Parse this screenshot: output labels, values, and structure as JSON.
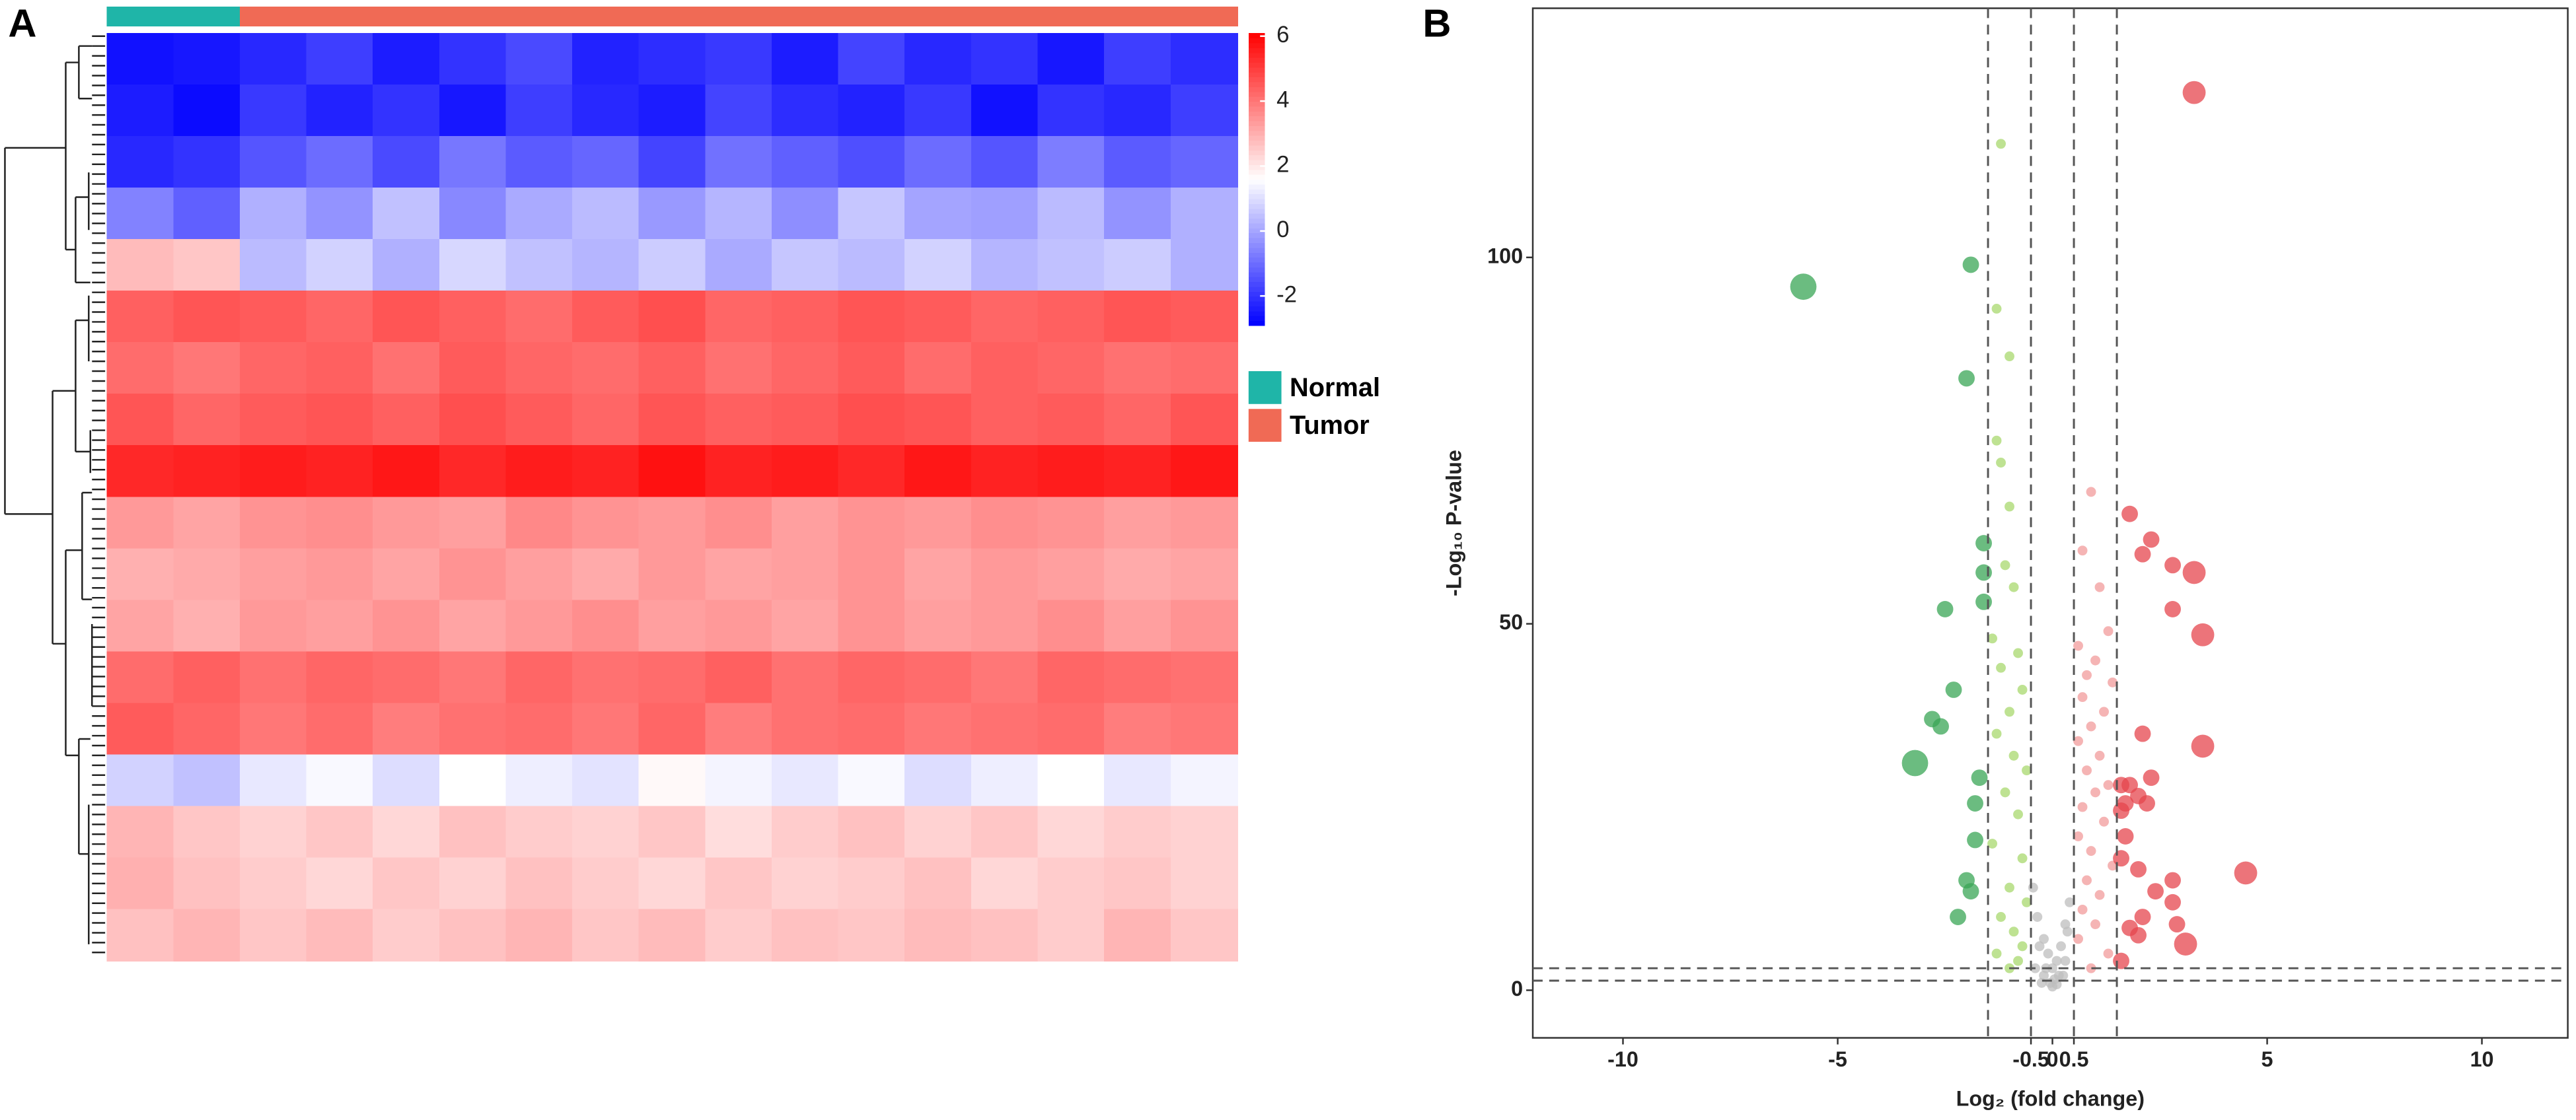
{
  "chart_data": [
    {
      "type": "heatmap",
      "panel_label": "A",
      "clim": [
        -2.9,
        6.1
      ],
      "colors": [
        "#0000ff",
        "#ffffff",
        "#ff0000"
      ],
      "cticks": [
        -2,
        0,
        2,
        4,
        6
      ],
      "groups": [
        {
          "name": "Normal",
          "color": "#1fb5a8"
        },
        {
          "name": "Tumor",
          "color": "#f06a55"
        }
      ],
      "column_groups": [
        0,
        0,
        1,
        1,
        1,
        1,
        1,
        1,
        1,
        1,
        1,
        1,
        1,
        1,
        1,
        1,
        1
      ],
      "values": [
        [
          -2.6,
          -2.5,
          -2.2,
          -1.8,
          -2.4,
          -2.0,
          -1.6,
          -2.3,
          -2.1,
          -1.9,
          -2.4,
          -1.7,
          -2.2,
          -2.0,
          -2.5,
          -1.8,
          -2.1
        ],
        [
          -2.4,
          -2.7,
          -1.9,
          -2.3,
          -2.0,
          -2.5,
          -1.8,
          -2.2,
          -2.4,
          -1.7,
          -2.1,
          -2.3,
          -1.9,
          -2.6,
          -2.0,
          -2.2,
          -1.8
        ],
        [
          -2.2,
          -2.0,
          -1.4,
          -1.0,
          -1.6,
          -0.8,
          -1.3,
          -1.1,
          -1.7,
          -0.9,
          -1.2,
          -1.5,
          -1.0,
          -1.4,
          -0.7,
          -1.3,
          -1.1
        ],
        [
          -0.6,
          -1.2,
          0.2,
          -0.3,
          0.5,
          -0.5,
          0.1,
          0.4,
          -0.2,
          0.3,
          -0.4,
          0.6,
          0.0,
          -0.1,
          0.4,
          -0.3,
          0.2
        ],
        [
          2.8,
          2.6,
          0.4,
          0.8,
          0.2,
          0.9,
          0.5,
          0.3,
          0.7,
          0.1,
          0.6,
          0.4,
          0.8,
          0.3,
          0.5,
          0.7,
          0.2
        ],
        [
          4.4,
          4.6,
          4.5,
          4.3,
          4.6,
          4.4,
          4.2,
          4.5,
          4.7,
          4.3,
          4.4,
          4.6,
          4.5,
          4.3,
          4.4,
          4.6,
          4.5
        ],
        [
          4.2,
          4.0,
          4.3,
          4.4,
          4.1,
          4.5,
          4.3,
          4.2,
          4.4,
          4.1,
          4.3,
          4.5,
          4.2,
          4.4,
          4.3,
          4.1,
          4.2
        ],
        [
          4.6,
          4.3,
          4.5,
          4.6,
          4.4,
          4.7,
          4.5,
          4.3,
          4.6,
          4.4,
          4.5,
          4.7,
          4.6,
          4.4,
          4.5,
          4.3,
          4.6
        ],
        [
          5.4,
          5.5,
          5.6,
          5.5,
          5.7,
          5.4,
          5.6,
          5.5,
          5.8,
          5.5,
          5.6,
          5.4,
          5.7,
          5.5,
          5.6,
          5.5,
          5.7
        ],
        [
          3.4,
          3.2,
          3.5,
          3.6,
          3.4,
          3.3,
          3.7,
          3.5,
          3.4,
          3.6,
          3.3,
          3.5,
          3.4,
          3.6,
          3.5,
          3.3,
          3.4
        ],
        [
          3.0,
          3.1,
          3.3,
          3.4,
          3.2,
          3.5,
          3.3,
          3.1,
          3.4,
          3.2,
          3.3,
          3.5,
          3.2,
          3.4,
          3.3,
          3.1,
          3.2
        ],
        [
          3.2,
          3.0,
          3.4,
          3.3,
          3.5,
          3.2,
          3.4,
          3.6,
          3.3,
          3.4,
          3.2,
          3.5,
          3.3,
          3.4,
          3.6,
          3.3,
          3.5
        ],
        [
          4.2,
          4.4,
          4.1,
          4.3,
          4.2,
          4.0,
          4.3,
          4.1,
          4.2,
          4.4,
          4.1,
          4.3,
          4.2,
          4.0,
          4.3,
          4.2,
          4.1
        ],
        [
          4.5,
          4.3,
          4.0,
          4.2,
          3.9,
          4.1,
          4.2,
          4.0,
          4.3,
          3.9,
          4.1,
          4.2,
          4.0,
          4.1,
          4.2,
          3.9,
          4.0
        ],
        [
          0.8,
          0.5,
          1.2,
          1.5,
          1.0,
          1.6,
          1.3,
          1.1,
          1.7,
          1.4,
          1.2,
          1.5,
          1.0,
          1.3,
          1.6,
          1.2,
          1.4
        ],
        [
          2.9,
          2.6,
          2.4,
          2.6,
          2.3,
          2.7,
          2.5,
          2.4,
          2.6,
          2.2,
          2.5,
          2.7,
          2.4,
          2.6,
          2.3,
          2.5,
          2.4
        ],
        [
          3.0,
          2.7,
          2.5,
          2.3,
          2.6,
          2.4,
          2.7,
          2.5,
          2.3,
          2.6,
          2.4,
          2.5,
          2.7,
          2.3,
          2.5,
          2.6,
          2.4
        ],
        [
          2.7,
          2.9,
          2.6,
          2.8,
          2.5,
          2.7,
          2.9,
          2.6,
          2.8,
          2.5,
          2.7,
          2.6,
          2.8,
          2.7,
          2.5,
          2.9,
          2.6
        ]
      ]
    },
    {
      "type": "scatter",
      "panel_label": "B",
      "xlabel": "Log₂ (fold change)",
      "ylabel": "-Log₁₀ P-value",
      "xlim": [
        -12.1,
        12
      ],
      "ylim": [
        -6.5,
        134
      ],
      "xticks": [
        -10,
        -5,
        -0.5,
        0,
        0.5,
        5,
        10
      ],
      "yticks": [
        0,
        50,
        100
      ],
      "vlines": [
        -1.5,
        -0.5,
        0.5,
        1.5
      ],
      "hlines": [
        1.3,
        3
      ],
      "series": [
        {
          "color": "#3aa655",
          "x": [
            -5.8,
            -1.9,
            -2.0,
            -1.6,
            -1.6,
            -1.6,
            -2.5,
            -2.3,
            -2.8,
            -2.6,
            -3.2,
            -1.7,
            -1.8,
            -1.8,
            -2.0,
            -1.9,
            -2.2
          ],
          "values": [
            96,
            99,
            83.5,
            61,
            57,
            53,
            52,
            41,
            37,
            36,
            31,
            29,
            25.5,
            20.5,
            15,
            13.5,
            10
          ],
          "sizes": [
            8,
            5,
            5,
            5,
            5,
            5,
            5,
            5,
            5,
            5,
            8,
            5,
            5,
            5,
            5,
            5,
            5
          ]
        },
        {
          "color": "#a8d86e",
          "size": 3,
          "x": [
            -1.2,
            -1.3,
            -1.0,
            -1.3,
            -1.2,
            -1.0,
            -1.1,
            -0.9,
            -1.4,
            -0.8,
            -1.2,
            -0.7,
            -1.0,
            -1.3,
            -0.9,
            -0.6,
            -1.1,
            -0.8,
            -1.4,
            -0.7,
            -1.0,
            -0.6,
            -1.2,
            -0.9,
            -0.7,
            -1.3,
            -0.8,
            -1.0
          ],
          "values": [
            115.5,
            93,
            86.5,
            75,
            72,
            66,
            58,
            55,
            48,
            46,
            44,
            41,
            38,
            35,
            32,
            30,
            27,
            24,
            20,
            18,
            14,
            12,
            10,
            8,
            6,
            5,
            4,
            3
          ]
        },
        {
          "color": "#bdbdbd",
          "size": 3,
          "x": [
            -0.45,
            -0.35,
            -0.2,
            -0.1,
            0.0,
            0.1,
            0.2,
            0.3,
            0.4,
            -0.3,
            -0.15,
            0.05,
            0.15,
            0.35,
            -0.4,
            -0.25,
            0.25,
            0.0,
            -0.05,
            0.1,
            -0.2,
            0.3
          ],
          "values": [
            14,
            10,
            7,
            5,
            3,
            4,
            6,
            9,
            12,
            6,
            3,
            1.5,
            2,
            8,
            3,
            1,
            2,
            0.5,
            1,
            0.8,
            2,
            4
          ]
        },
        {
          "color": "#f29b9b",
          "size": 3,
          "x": [
            0.9,
            0.7,
            1.1,
            1.3,
            0.6,
            1.0,
            0.8,
            1.4,
            0.7,
            1.2,
            0.9,
            0.6,
            1.1,
            0.8,
            1.3,
            1.0,
            0.7,
            1.2,
            0.6,
            0.9,
            1.4,
            0.8,
            1.1,
            0.7,
            1.0,
            0.6,
            1.3,
            0.9
          ],
          "values": [
            68,
            60,
            55,
            49,
            47,
            45,
            43,
            42,
            40,
            38,
            36,
            34,
            32,
            30,
            28,
            27,
            25,
            23,
            21,
            19,
            17,
            15,
            13,
            11,
            9,
            7,
            5,
            3
          ]
        },
        {
          "color": "#e6454d",
          "x": [
            3.3,
            1.8,
            2.3,
            2.1,
            2.8,
            3.3,
            3.5,
            2.8,
            2.1,
            3.5,
            2.3,
            1.8,
            1.6,
            2.0,
            1.7,
            2.2,
            1.6,
            4.5,
            1.7,
            1.6,
            2.0,
            2.4,
            2.8,
            2.1,
            1.8,
            2.0,
            2.8,
            3.1,
            2.9,
            1.6
          ],
          "values": [
            122.5,
            65,
            61.5,
            59.5,
            58,
            57,
            48.5,
            52,
            35,
            33.3,
            29,
            28,
            28,
            26.5,
            25.5,
            25.5,
            24.5,
            16,
            21,
            18,
            16.5,
            13.5,
            12,
            10,
            8.5,
            7.5,
            15,
            6.3,
            9,
            4
          ],
          "sizes": [
            7,
            5,
            5,
            5,
            5,
            7,
            7,
            5,
            5,
            7,
            5,
            5,
            5,
            5,
            5,
            5,
            5,
            7,
            5,
            5,
            5,
            5,
            5,
            5,
            5,
            5,
            5,
            7,
            5,
            5
          ]
        }
      ]
    }
  ]
}
